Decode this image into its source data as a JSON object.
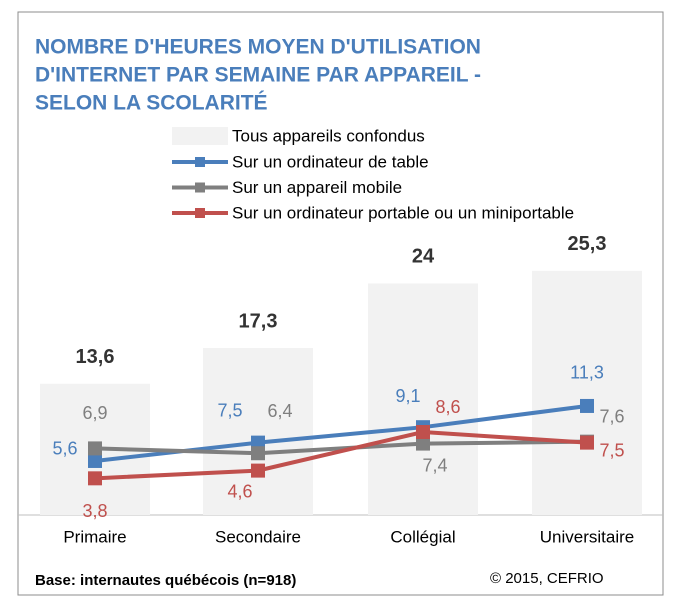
{
  "chart_data": {
    "type": "bar",
    "title": [
      "NOMBRE D'HEURES MOYEN D'UTILISATION",
      "D'INTERNET PAR SEMAINE PAR APPAREIL -",
      "SELON LA SCOLARITÉ"
    ],
    "categories": [
      "Primaire",
      "Secondaire",
      "Collégial",
      "Universitaire"
    ],
    "bars": {
      "name": "Tous appareils confondus",
      "color": "#f2f2f2",
      "values": [
        13.6,
        17.3,
        24,
        25.3
      ],
      "value_labels": [
        "13,6",
        "17,3",
        "24",
        "25,3"
      ]
    },
    "series": [
      {
        "type": "line",
        "name": "Sur un ordinateur de table",
        "color": "#4a7ebb",
        "values": [
          5.6,
          7.5,
          9.1,
          11.3
        ],
        "value_labels": [
          "5,6",
          "7,5",
          "9,1",
          "11,3"
        ]
      },
      {
        "type": "line",
        "name": "Sur un appareil mobile",
        "color": "#7f7f7f",
        "values": [
          6.9,
          6.4,
          7.4,
          7.6
        ],
        "value_labels": [
          "6,9",
          "6,4",
          "7,4",
          "7,6"
        ]
      },
      {
        "type": "line",
        "name": "Sur un ordinateur portable ou un miniportable",
        "color": "#c0504d",
        "values": [
          3.8,
          4.6,
          8.6,
          7.5
        ],
        "value_labels": [
          "3,8",
          "4,6",
          "8,6",
          "7,5"
        ]
      }
    ],
    "footnote": "Base: internautes québécois (n=918)",
    "source": "© 2015, CEFRIO"
  }
}
